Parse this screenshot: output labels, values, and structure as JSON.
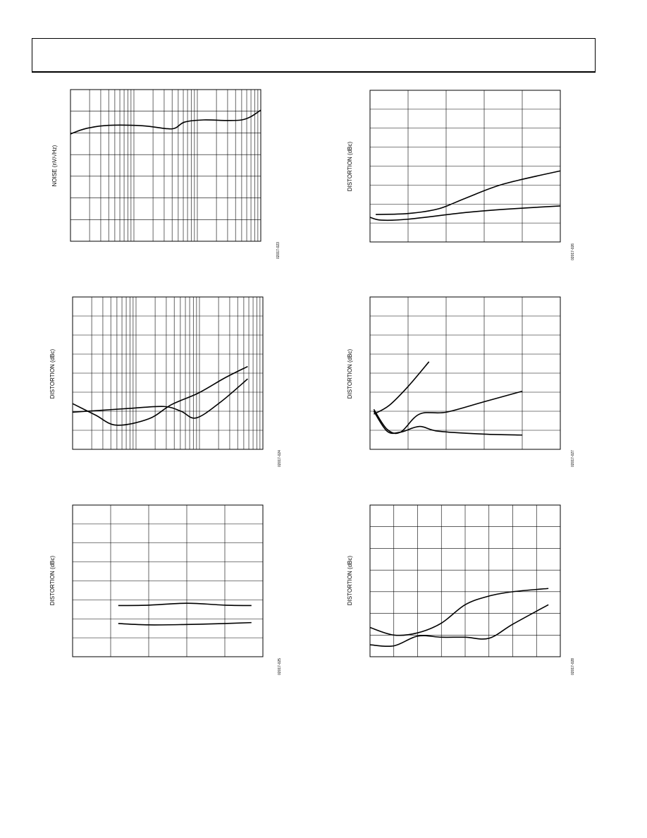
{
  "page": {
    "header_text": ""
  },
  "chart_data": [
    {
      "id": "c1",
      "type": "line",
      "ylabel": "NOISE (nV/√Hz)",
      "figure_id": "02017-023",
      "xscale": "log",
      "xlim": [
        0.0,
        1.0
      ],
      "ylim": [
        0.0,
        7.0
      ],
      "grid": true,
      "series": [
        {
          "points": [
            [
              0.0,
              4.95
            ],
            [
              0.08,
              5.2
            ],
            [
              0.2,
              5.35
            ],
            [
              0.38,
              5.33
            ],
            [
              0.5,
              5.2
            ],
            [
              0.55,
              5.22
            ],
            [
              0.6,
              5.5
            ],
            [
              0.7,
              5.6
            ],
            [
              0.9,
              5.6
            ],
            [
              1.0,
              6.05
            ]
          ]
        }
      ]
    },
    {
      "id": "c2",
      "type": "line",
      "ylabel": "DISTORTION (dBc)",
      "figure_id": "02017-024",
      "xscale": "log",
      "xlim": [
        0.0,
        1.0
      ],
      "ylim": [
        0.0,
        8.0
      ],
      "grid": true,
      "series": [
        {
          "points": [
            [
              0.0,
              2.4
            ],
            [
              0.12,
              1.8
            ],
            [
              0.23,
              1.27
            ],
            [
              0.4,
              1.6
            ],
            [
              0.52,
              2.35
            ],
            [
              0.66,
              2.95
            ],
            [
              0.8,
              3.75
            ],
            [
              0.92,
              4.35
            ]
          ]
        },
        {
          "points": [
            [
              0.0,
              1.95
            ],
            [
              0.15,
              2.05
            ],
            [
              0.3,
              2.15
            ],
            [
              0.48,
              2.25
            ],
            [
              0.57,
              2.0
            ],
            [
              0.65,
              1.65
            ],
            [
              0.78,
              2.5
            ],
            [
              0.92,
              3.7
            ]
          ]
        }
      ]
    },
    {
      "id": "c3",
      "type": "line",
      "ylabel": "DISTORTION (dBc)",
      "figure_id": "02017-025",
      "xlim": [
        0,
        5
      ],
      "ylim": [
        0,
        8
      ],
      "grid": true,
      "series": [
        {
          "points": [
            [
              1.2,
              2.7
            ],
            [
              2.0,
              2.72
            ],
            [
              3.0,
              2.82
            ],
            [
              4.0,
              2.72
            ],
            [
              4.7,
              2.7
            ]
          ]
        },
        {
          "points": [
            [
              1.2,
              1.75
            ],
            [
              2.0,
              1.68
            ],
            [
              3.0,
              1.7
            ],
            [
              4.0,
              1.75
            ],
            [
              4.7,
              1.8
            ]
          ]
        }
      ]
    },
    {
      "id": "c4",
      "type": "line",
      "ylabel": "DISTORTION (dBc)",
      "figure_id": "02017-026",
      "xlim": [
        0,
        5
      ],
      "ylim": [
        0,
        8
      ],
      "grid": true,
      "series": [
        {
          "points": [
            [
              0.15,
              1.45
            ],
            [
              1.0,
              1.5
            ],
            [
              1.8,
              1.75
            ],
            [
              2.5,
              2.3
            ],
            [
              3.5,
              3.05
            ],
            [
              5.0,
              3.75
            ]
          ]
        },
        {
          "points": [
            [
              0.0,
              1.3
            ],
            [
              0.3,
              1.15
            ],
            [
              1.0,
              1.2
            ],
            [
              2.5,
              1.55
            ],
            [
              3.5,
              1.72
            ],
            [
              5.0,
              1.9
            ]
          ]
        }
      ]
    },
    {
      "id": "c5",
      "type": "line",
      "ylabel": "DISTORTION (dBc)",
      "figure_id": "02017-027",
      "xlim": [
        0,
        5
      ],
      "ylim": [
        0,
        8
      ],
      "grid": true,
      "series": [
        {
          "points": [
            [
              0.1,
              1.85
            ],
            [
              0.5,
              2.3
            ],
            [
              1.0,
              3.3
            ],
            [
              1.55,
              4.6
            ]
          ]
        },
        {
          "points": [
            [
              0.1,
              2.1
            ],
            [
              0.45,
              1.05
            ],
            [
              0.8,
              0.9
            ],
            [
              1.3,
              1.85
            ],
            [
              2.0,
              1.95
            ],
            [
              3.0,
              2.5
            ],
            [
              4.0,
              3.05
            ]
          ]
        },
        {
          "points": [
            [
              0.1,
              2.0
            ],
            [
              0.45,
              0.95
            ],
            [
              0.8,
              0.9
            ],
            [
              1.3,
              1.2
            ],
            [
              1.8,
              0.95
            ],
            [
              3.0,
              0.8
            ],
            [
              4.0,
              0.75
            ]
          ]
        }
      ]
    },
    {
      "id": "c6",
      "type": "line",
      "ylabel": "DISTORTION (dBc)",
      "figure_id": "02017-028",
      "xlim": [
        0,
        8
      ],
      "ylim": [
        0,
        7
      ],
      "grid": true,
      "series": [
        {
          "points": [
            [
              0.0,
              1.35
            ],
            [
              1.0,
              1.0
            ],
            [
              2.0,
              1.1
            ],
            [
              3.0,
              1.55
            ],
            [
              4.0,
              2.4
            ],
            [
              5.0,
              2.8
            ],
            [
              6.0,
              3.0
            ],
            [
              7.5,
              3.15
            ]
          ]
        },
        {
          "points": [
            [
              0.0,
              0.55
            ],
            [
              1.0,
              0.5
            ],
            [
              2.0,
              0.95
            ],
            [
              3.0,
              0.9
            ],
            [
              4.0,
              0.9
            ],
            [
              5.0,
              0.85
            ],
            [
              6.0,
              1.5
            ],
            [
              7.5,
              2.4
            ]
          ]
        }
      ]
    }
  ]
}
